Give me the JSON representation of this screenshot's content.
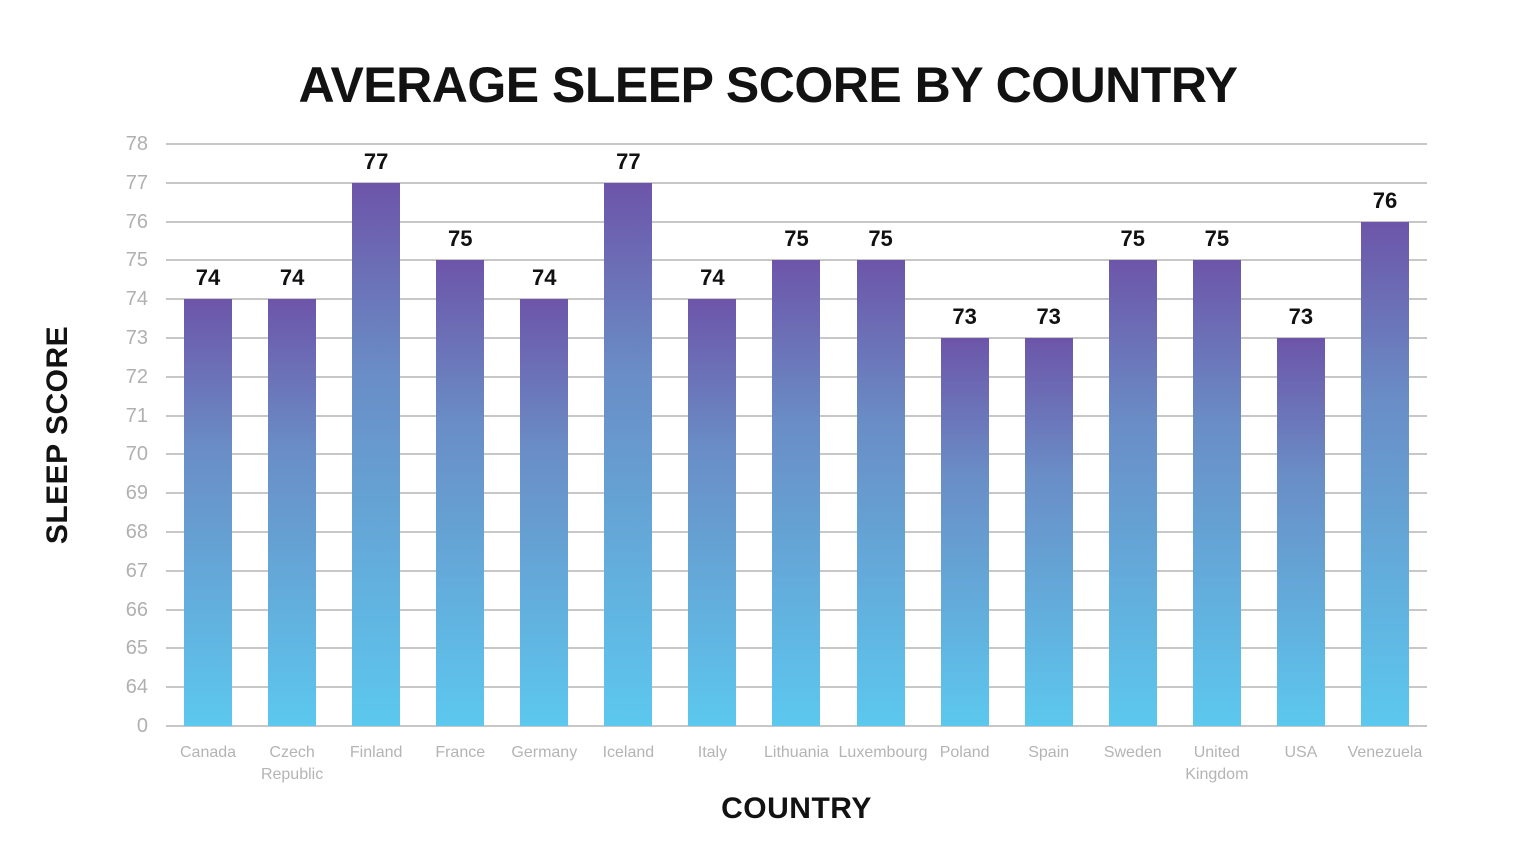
{
  "chart_data": {
    "type": "bar",
    "title": "AVERAGE SLEEP SCORE BY COUNTRY",
    "xlabel": "COUNTRY",
    "ylabel": "SLEEP SCORE",
    "categories": [
      "Canada",
      "Czech Republic",
      "Finland",
      "France",
      "Germany",
      "Iceland",
      "Italy",
      "Lithuania",
      "Luxembourg",
      "Poland",
      "Spain",
      "Sweden",
      "United Kingdom",
      "USA",
      "Venezuela"
    ],
    "values": [
      74,
      74,
      77,
      75,
      74,
      77,
      74,
      75,
      75,
      73,
      73,
      75,
      75,
      73,
      76
    ],
    "y_ticks_top_to_bottom": [
      "78",
      "77",
      "76",
      "75",
      "74",
      "73",
      "72",
      "71",
      "70",
      "69",
      "68",
      "67",
      "66",
      "65",
      "64",
      "0"
    ],
    "axis_note": "broken y-axis: baseline tick 0, then 64-78 in equal steps",
    "grid": true,
    "legend": "none",
    "colors": {
      "bar_gradient_top": "#6d55a9",
      "bar_gradient_mid": "#6a8dc6",
      "bar_gradient_bottom": "#5cc8ee",
      "gridline": "#c7c7c7",
      "tick_label": "#b0b0b0",
      "x_label": "#b4b4b4",
      "value_label": "#111111",
      "title": "#121212"
    }
  }
}
